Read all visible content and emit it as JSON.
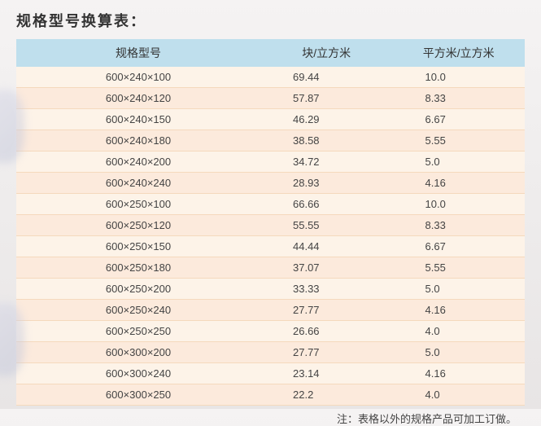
{
  "title": "规格型号换算表：",
  "table": {
    "type": "table",
    "background_color_odd": "#fdf3e8",
    "background_color_even": "#fceadc",
    "header_background": "#bfdfed",
    "border_color": "#f5d9bd",
    "text_color": "#444444",
    "title_fontsize": 18,
    "header_fontsize": 14,
    "cell_fontsize": 13,
    "columns": [
      "规格型号",
      "块/立方米",
      "平方米/立方米"
    ],
    "column_widths": [
      "48%",
      "26%",
      "26%"
    ],
    "rows": [
      [
        "600×240×100",
        "69.44",
        "10.0"
      ],
      [
        "600×240×120",
        "57.87",
        "  8.33"
      ],
      [
        "600×240×150",
        "46.29",
        "6.67"
      ],
      [
        "600×240×180",
        "38.58",
        "5.55"
      ],
      [
        "600×240×200",
        "34.72",
        "5.0"
      ],
      [
        "600×240×240",
        "28.93",
        "4.16"
      ],
      [
        "600×250×100",
        "66.66",
        "10.0"
      ],
      [
        "600×250×120",
        "55.55",
        "8.33"
      ],
      [
        "600×250×150",
        "44.44",
        "6.67"
      ],
      [
        "600×250×180",
        "37.07",
        "5.55"
      ],
      [
        "600×250×200",
        "33.33",
        "5.0"
      ],
      [
        "600×250×240",
        "27.77",
        "4.16"
      ],
      [
        "600×250×250",
        "26.66",
        "4.0"
      ],
      [
        "600×300×200",
        "27.77",
        "5.0"
      ],
      [
        "600×300×240",
        "23.14",
        "4.16"
      ],
      [
        "600×300×250",
        "22.2",
        "4.0"
      ]
    ]
  },
  "footnote": "注：表格以外的规格产品可加工订做。"
}
